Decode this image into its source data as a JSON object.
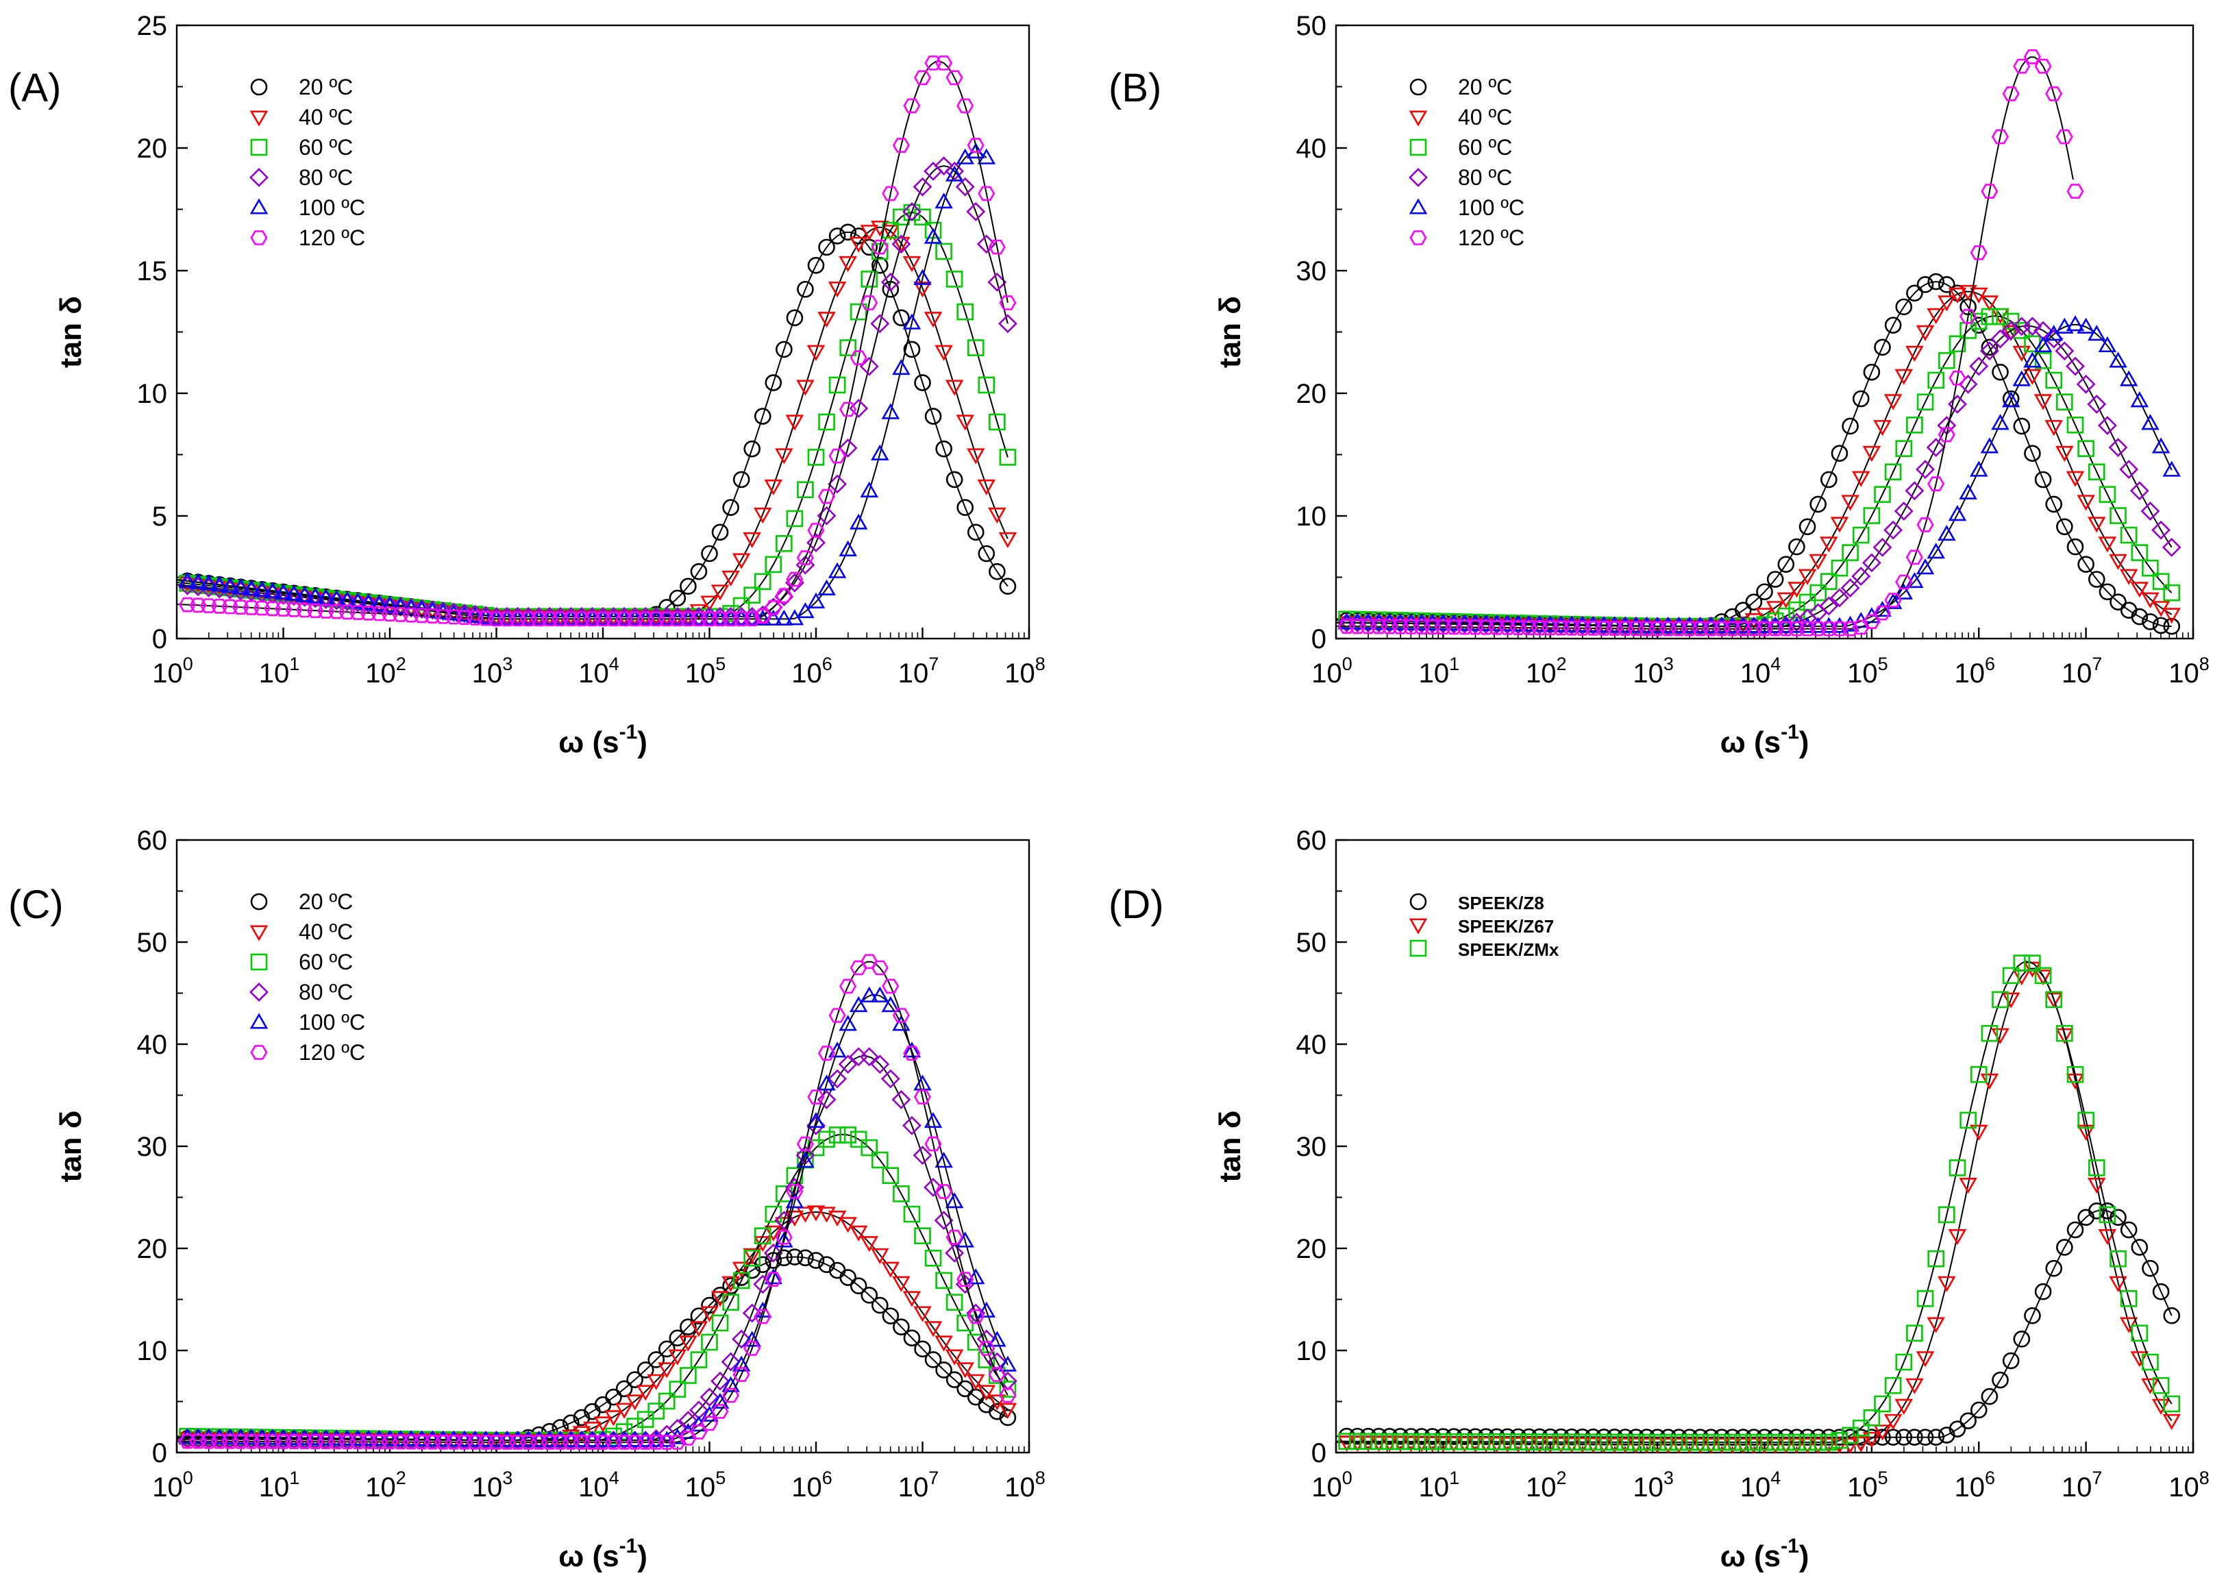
{
  "figure": {
    "panels": [
      "(A)",
      "(B)",
      "(C)",
      "(D)"
    ]
  },
  "chart_data": [
    {
      "type": "scatter",
      "panel": "(A)",
      "title": "",
      "xlabel": "ω (s-1)",
      "xlabel_main": "ω (s",
      "xlabel_sup": "-1",
      "xlabel_close": ")",
      "ylabel": "tan δ",
      "xscale": "log",
      "xlim": [
        1,
        100000000
      ],
      "ylim": [
        0,
        25
      ],
      "yticks": [
        "0",
        "5",
        "10",
        "15",
        "20",
        "25"
      ],
      "xticks": [
        {
          "base": "10",
          "exp": "0"
        },
        {
          "base": "10",
          "exp": "1"
        },
        {
          "base": "10",
          "exp": "2"
        },
        {
          "base": "10",
          "exp": "3"
        },
        {
          "base": "10",
          "exp": "4"
        },
        {
          "base": "10",
          "exp": "5"
        },
        {
          "base": "10",
          "exp": "6"
        },
        {
          "base": "10",
          "exp": "7"
        },
        {
          "base": "10",
          "exp": "8"
        }
      ],
      "fit_lines": "solid black",
      "series": [
        {
          "name": "20 ºC",
          "marker": "circle",
          "color": "#000000",
          "start": 2.4,
          "dip": 0.9,
          "peak_logx": 6.3,
          "peak": 16.3,
          "width": 0.72,
          "end_log": 7.8
        },
        {
          "name": "40 ºC",
          "marker": "triangle-down",
          "color": "#ff0000",
          "start": 2.3,
          "dip": 0.9,
          "peak_logx": 6.6,
          "peak": 16.5,
          "width": 0.7,
          "end_log": 7.8
        },
        {
          "name": "60 ºC",
          "marker": "square",
          "color": "#00cc00",
          "start": 2.3,
          "dip": 0.9,
          "peak_logx": 6.9,
          "peak": 17.1,
          "width": 0.68,
          "end_log": 7.8
        },
        {
          "name": "80 ºC",
          "marker": "diamond",
          "color": "#9900cc",
          "start": 2.2,
          "dip": 0.9,
          "peak_logx": 7.2,
          "peak": 19.0,
          "width": 0.66,
          "end_log": 7.8
        },
        {
          "name": "100 ºC",
          "marker": "triangle-up",
          "color": "#0000ff",
          "start": 2.4,
          "dip": 0.8,
          "peak_logx": 7.5,
          "peak": 19.6,
          "width": 0.64,
          "end_log": 7.6
        },
        {
          "name": "120 ºC",
          "marker": "hexagon",
          "color": "#ff00ff",
          "start": 1.4,
          "dip": 0.8,
          "peak_logx": 7.15,
          "peak": 23.3,
          "width": 0.62,
          "end_log": 7.8
        }
      ]
    },
    {
      "type": "scatter",
      "panel": "(B)",
      "title": "",
      "xlabel": "ω (s-1)",
      "xlabel_main": "ω (s",
      "xlabel_sup": "-1",
      "xlabel_close": ")",
      "ylabel": "tan δ",
      "xscale": "log",
      "xlim": [
        1,
        100000000
      ],
      "ylim": [
        0,
        50
      ],
      "yticks": [
        "0",
        "10",
        "20",
        "30",
        "40",
        "50"
      ],
      "xticks": [
        {
          "base": "10",
          "exp": "0"
        },
        {
          "base": "10",
          "exp": "1"
        },
        {
          "base": "10",
          "exp": "2"
        },
        {
          "base": "10",
          "exp": "3"
        },
        {
          "base": "10",
          "exp": "4"
        },
        {
          "base": "10",
          "exp": "5"
        },
        {
          "base": "10",
          "exp": "6"
        },
        {
          "base": "10",
          "exp": "7"
        },
        {
          "base": "10",
          "exp": "8"
        }
      ],
      "fit_lines": "solid black",
      "series": [
        {
          "name": "20 ºC",
          "marker": "circle",
          "color": "#000000",
          "start": 1.5,
          "dip": 1.0,
          "peak_logx": 5.6,
          "peak": 28.8,
          "width": 0.78,
          "end_log": 7.8
        },
        {
          "name": "40 ºC",
          "marker": "triangle-down",
          "color": "#ff0000",
          "start": 1.3,
          "dip": 1.0,
          "peak_logx": 5.9,
          "peak": 28.0,
          "width": 0.8,
          "end_log": 7.8
        },
        {
          "name": "60 ºC",
          "marker": "square",
          "color": "#00cc00",
          "start": 1.6,
          "dip": 1.0,
          "peak_logx": 6.15,
          "peak": 26.0,
          "width": 0.82,
          "end_log": 7.8
        },
        {
          "name": "80 ºC",
          "marker": "diamond",
          "color": "#9900cc",
          "start": 1.3,
          "dip": 1.0,
          "peak_logx": 6.45,
          "peak": 25.2,
          "width": 0.85,
          "end_log": 7.8
        },
        {
          "name": "100 ºC",
          "marker": "triangle-up",
          "color": "#0000ff",
          "start": 1.3,
          "dip": 1.0,
          "peak_logx": 6.9,
          "peak": 25.3,
          "width": 0.8,
          "end_log": 7.8
        },
        {
          "name": "120 ºC",
          "marker": "hexagon",
          "color": "#ff00ff",
          "start": 1.0,
          "dip": 0.8,
          "peak_logx": 6.5,
          "peak": 47.2,
          "width": 0.55,
          "end_log": 6.9
        }
      ]
    },
    {
      "type": "scatter",
      "panel": "(C)",
      "title": "",
      "xlabel": "ω (s-1)",
      "xlabel_main": "ω (s",
      "xlabel_sup": "-1",
      "xlabel_close": ")",
      "ylabel": "tan δ",
      "xscale": "log",
      "xlim": [
        1,
        100000000
      ],
      "ylim": [
        0,
        60
      ],
      "yticks": [
        "0",
        "10",
        "20",
        "30",
        "40",
        "50",
        "60"
      ],
      "xticks": [
        {
          "base": "10",
          "exp": "0"
        },
        {
          "base": "10",
          "exp": "1"
        },
        {
          "base": "10",
          "exp": "2"
        },
        {
          "base": "10",
          "exp": "3"
        },
        {
          "base": "10",
          "exp": "4"
        },
        {
          "base": "10",
          "exp": "5"
        },
        {
          "base": "10",
          "exp": "6"
        },
        {
          "base": "10",
          "exp": "7"
        },
        {
          "base": "10",
          "exp": "8"
        }
      ],
      "fit_lines": "solid black",
      "series": [
        {
          "name": "20 ºC",
          "marker": "circle",
          "color": "#000000",
          "start": 1.4,
          "dip": 1.2,
          "peak_logx": 5.8,
          "peak": 18.8,
          "width": 1.05,
          "end_log": 7.8
        },
        {
          "name": "40 ºC",
          "marker": "triangle-down",
          "color": "#ff0000",
          "start": 1.4,
          "dip": 1.2,
          "peak_logx": 6.0,
          "peak": 23.2,
          "width": 0.95,
          "end_log": 7.8
        },
        {
          "name": "60 ºC",
          "marker": "square",
          "color": "#00cc00",
          "start": 1.6,
          "dip": 1.2,
          "peak_logx": 6.25,
          "peak": 30.8,
          "width": 0.85,
          "end_log": 7.8
        },
        {
          "name": "80 ºC",
          "marker": "diamond",
          "color": "#9900cc",
          "start": 1.3,
          "dip": 1.2,
          "peak_logx": 6.45,
          "peak": 38.5,
          "width": 0.72,
          "end_log": 7.8
        },
        {
          "name": "100 ºC",
          "marker": "triangle-up",
          "color": "#0000ff",
          "start": 1.5,
          "dip": 1.2,
          "peak_logx": 6.55,
          "peak": 44.5,
          "width": 0.68,
          "end_log": 7.8
        },
        {
          "name": "120 ºC",
          "marker": "hexagon",
          "color": "#ff00ff",
          "start": 1.1,
          "dip": 1.0,
          "peak_logx": 6.5,
          "peak": 47.8,
          "width": 0.62,
          "end_log": 7.8
        }
      ]
    },
    {
      "type": "scatter",
      "panel": "(D)",
      "title": "",
      "xlabel": "ω (s-1)",
      "xlabel_main": "ω (s",
      "xlabel_sup": "-1",
      "xlabel_close": ")",
      "ylabel": "tan δ",
      "xscale": "log",
      "xlim": [
        1,
        100000000
      ],
      "ylim": [
        0,
        60
      ],
      "yticks": [
        "0",
        "10",
        "20",
        "30",
        "40",
        "50",
        "60"
      ],
      "xticks": [
        {
          "base": "10",
          "exp": "0"
        },
        {
          "base": "10",
          "exp": "1"
        },
        {
          "base": "10",
          "exp": "2"
        },
        {
          "base": "10",
          "exp": "3"
        },
        {
          "base": "10",
          "exp": "4"
        },
        {
          "base": "10",
          "exp": "5"
        },
        {
          "base": "10",
          "exp": "6"
        },
        {
          "base": "10",
          "exp": "7"
        },
        {
          "base": "10",
          "exp": "8"
        }
      ],
      "fit_lines": "solid black",
      "legend_bold": true,
      "series": [
        {
          "name": "SPEEK/Z8",
          "marker": "circle",
          "color": "#000000",
          "start": 1.6,
          "dip": 1.5,
          "peak_logx": 7.15,
          "peak": 23.3,
          "width": 0.6,
          "end_log": 7.8
        },
        {
          "name": "SPEEK/Z67",
          "marker": "triangle-down",
          "color": "#ff0000",
          "start": 1.0,
          "dip": 0.8,
          "peak_logx": 6.5,
          "peak": 47.2,
          "width": 0.55,
          "end_log": 7.8
        },
        {
          "name": "SPEEK/ZMx",
          "marker": "square",
          "color": "#00cc00",
          "start": 1.1,
          "dip": 1.0,
          "peak_logx": 6.45,
          "peak": 47.8,
          "width": 0.62,
          "end_log": 7.8
        }
      ]
    }
  ]
}
